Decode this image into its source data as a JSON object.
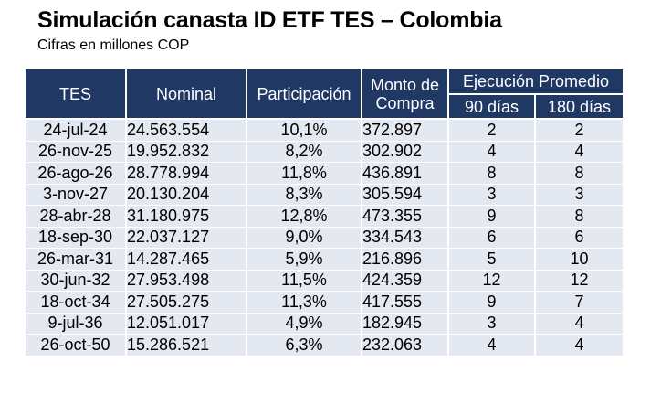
{
  "title": "Simulación canasta ID ETF TES – Colombia",
  "subtitle": "Cifras en millones COP",
  "table": {
    "headers": {
      "tes": "TES",
      "nominal": "Nominal",
      "participacion": "Participación",
      "monto_line1": "Monto de",
      "monto_line2": "Compra",
      "ejecucion": "Ejecución Promedio",
      "d90": "90 días",
      "d180": "180 días"
    },
    "rows": [
      {
        "tes": "24-jul-24",
        "nominal": "24.563.554",
        "participacion": "10,1%",
        "monto": "372.897",
        "d90": "2",
        "d180": "2"
      },
      {
        "tes": "26-nov-25",
        "nominal": "19.952.832",
        "participacion": "8,2%",
        "monto": "302.902",
        "d90": "4",
        "d180": "4"
      },
      {
        "tes": "26-ago-26",
        "nominal": "28.778.994",
        "participacion": "11,8%",
        "monto": "436.891",
        "d90": "8",
        "d180": "8"
      },
      {
        "tes": "3-nov-27",
        "nominal": "20.130.204",
        "participacion": "8,3%",
        "monto": "305.594",
        "d90": "3",
        "d180": "3"
      },
      {
        "tes": "28-abr-28",
        "nominal": "31.180.975",
        "participacion": "12,8%",
        "monto": "473.355",
        "d90": "9",
        "d180": "8"
      },
      {
        "tes": "18-sep-30",
        "nominal": "22.037.127",
        "participacion": "9,0%",
        "monto": "334.543",
        "d90": "6",
        "d180": "6"
      },
      {
        "tes": "26-mar-31",
        "nominal": "14.287.465",
        "participacion": "5,9%",
        "monto": "216.896",
        "d90": "5",
        "d180": "10"
      },
      {
        "tes": "30-jun-32",
        "nominal": "27.953.498",
        "participacion": "11,5%",
        "monto": "424.359",
        "d90": "12",
        "d180": "12"
      },
      {
        "tes": "18-oct-34",
        "nominal": "27.505.275",
        "participacion": "11,3%",
        "monto": "417.555",
        "d90": "9",
        "d180": "7"
      },
      {
        "tes": "9-jul-36",
        "nominal": "12.051.017",
        "participacion": "4,9%",
        "monto": "182.945",
        "d90": "3",
        "d180": "4"
      },
      {
        "tes": "26-oct-50",
        "nominal": "15.286.521",
        "participacion": "6,3%",
        "monto": "232.063",
        "d90": "4",
        "d180": "4"
      }
    ]
  },
  "colors": {
    "header_bg": "#1f3864",
    "row_bg": "#e4e8f1",
    "header_text": "#ffffff"
  }
}
